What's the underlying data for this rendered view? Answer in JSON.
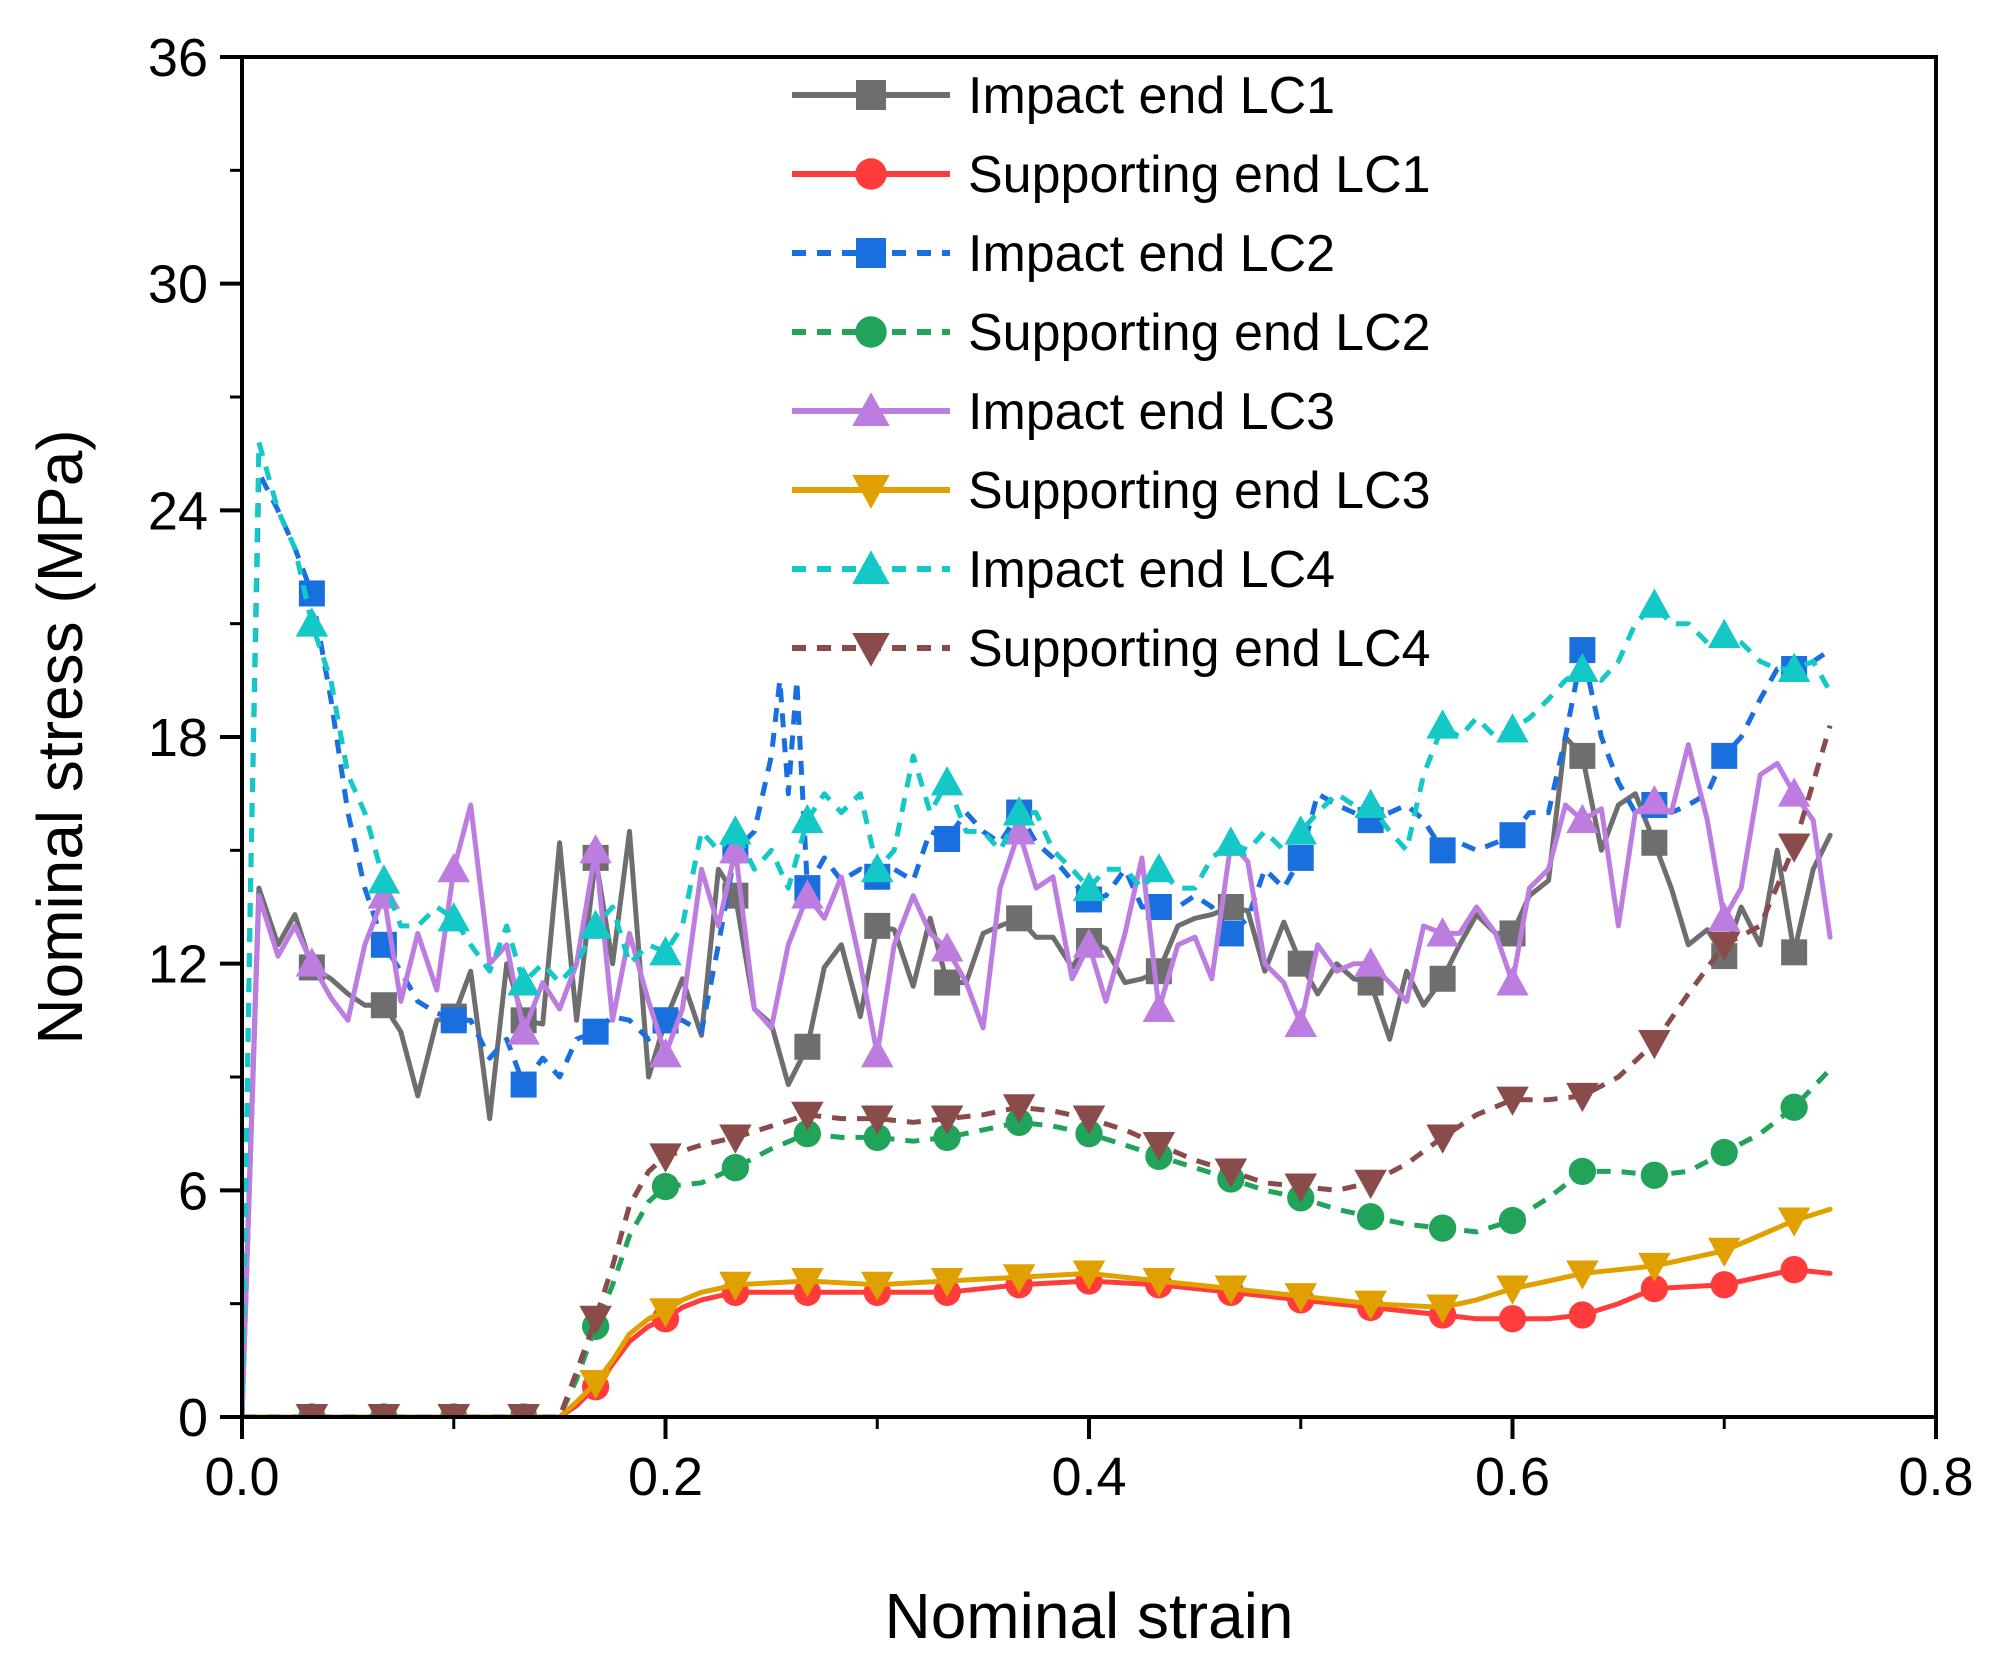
{
  "chart_data": {
    "type": "line",
    "title": "",
    "xlabel": "Nominal strain",
    "ylabel": "Nominal stress (MPa)",
    "xlim": [
      0.0,
      0.8
    ],
    "ylim": [
      0,
      36
    ],
    "xticks": [
      0.0,
      0.2,
      0.4,
      0.6,
      0.8
    ],
    "xtick_labels": [
      "0.0",
      "0.2",
      "0.4",
      "0.6",
      "0.8"
    ],
    "yticks": [
      0,
      6,
      12,
      18,
      24,
      30,
      36
    ],
    "ytick_labels": [
      "0",
      "6",
      "12",
      "18",
      "24",
      "30",
      "36"
    ],
    "grid": false,
    "legend_position": "top-right",
    "series": [
      {
        "name": "Impact end LC1",
        "color": "#6e6e6e",
        "dash": "solid",
        "marker": "square",
        "x": [
          0,
          0.008,
          0.017,
          0.025,
          0.033,
          0.042,
          0.05,
          0.058,
          0.067,
          0.075,
          0.083,
          0.092,
          0.1,
          0.108,
          0.117,
          0.125,
          0.133,
          0.142,
          0.15,
          0.158,
          0.167,
          0.175,
          0.183,
          0.192,
          0.2,
          0.208,
          0.217,
          0.225,
          0.233,
          0.242,
          0.25,
          0.258,
          0.267,
          0.275,
          0.283,
          0.292,
          0.3,
          0.308,
          0.317,
          0.325,
          0.333,
          0.342,
          0.35,
          0.358,
          0.367,
          0.375,
          0.383,
          0.392,
          0.4,
          0.408,
          0.417,
          0.425,
          0.433,
          0.442,
          0.45,
          0.458,
          0.467,
          0.475,
          0.483,
          0.492,
          0.5,
          0.508,
          0.517,
          0.525,
          0.533,
          0.542,
          0.55,
          0.558,
          0.567,
          0.575,
          0.583,
          0.592,
          0.6,
          0.608,
          0.617,
          0.625,
          0.633,
          0.642,
          0.65,
          0.658,
          0.667,
          0.675,
          0.683,
          0.692,
          0.7,
          0.708,
          0.717,
          0.725,
          0.733,
          0.742,
          0.75
        ],
        "y": [
          0,
          14.0,
          12.5,
          13.3,
          11.9,
          11.6,
          11.2,
          10.9,
          10.9,
          10.2,
          8.5,
          10.5,
          10.6,
          11.8,
          7.9,
          12.0,
          10.5,
          10.4,
          15.2,
          10.5,
          14.8,
          12.0,
          15.5,
          9.0,
          10.5,
          11.6,
          10.1,
          14.5,
          13.8,
          10.8,
          10.4,
          8.8,
          9.8,
          11.9,
          12.5,
          10.6,
          13.0,
          12.9,
          11.4,
          13.2,
          11.5,
          11.5,
          12.8,
          13.0,
          13.2,
          12.7,
          12.7,
          11.9,
          12.6,
          12.4,
          11.5,
          11.6,
          11.8,
          13.0,
          13.2,
          13.3,
          13.5,
          13.4,
          11.8,
          13.1,
          12.0,
          11.2,
          12.0,
          11.6,
          11.5,
          10.0,
          11.8,
          10.9,
          11.6,
          12.5,
          13.3,
          12.8,
          12.8,
          13.8,
          14.2,
          18.0,
          17.5,
          15.0,
          16.2,
          16.5,
          15.2,
          14.0,
          12.5,
          12.9,
          12.2,
          13.5,
          12.5,
          15.0,
          12.3,
          14.5,
          15.4
        ]
      },
      {
        "name": "Supporting end LC1",
        "color": "#ff3b3b",
        "dash": "solid",
        "marker": "circle",
        "x": [
          0,
          0.033,
          0.067,
          0.1,
          0.133,
          0.15,
          0.158,
          0.167,
          0.175,
          0.183,
          0.192,
          0.2,
          0.208,
          0.217,
          0.233,
          0.267,
          0.3,
          0.333,
          0.367,
          0.4,
          0.433,
          0.467,
          0.5,
          0.533,
          0.567,
          0.583,
          0.6,
          0.617,
          0.633,
          0.65,
          0.667,
          0.7,
          0.733,
          0.75
        ],
        "y": [
          0,
          0,
          0,
          0,
          0,
          0,
          0.3,
          0.8,
          1.4,
          2.0,
          2.4,
          2.6,
          2.9,
          3.1,
          3.3,
          3.3,
          3.3,
          3.3,
          3.5,
          3.6,
          3.5,
          3.3,
          3.1,
          2.9,
          2.7,
          2.6,
          2.6,
          2.6,
          2.7,
          3.0,
          3.4,
          3.5,
          3.9,
          3.8
        ]
      },
      {
        "name": "Impact end LC2",
        "color": "#1a6fdf",
        "dash": "dash",
        "marker": "square",
        "x": [
          0,
          0.004,
          0.008,
          0.017,
          0.025,
          0.033,
          0.042,
          0.05,
          0.058,
          0.067,
          0.075,
          0.083,
          0.092,
          0.1,
          0.108,
          0.117,
          0.125,
          0.133,
          0.142,
          0.15,
          0.158,
          0.167,
          0.175,
          0.183,
          0.192,
          0.2,
          0.208,
          0.217,
          0.225,
          0.233,
          0.242,
          0.25,
          0.254,
          0.258,
          0.262,
          0.267,
          0.275,
          0.283,
          0.292,
          0.3,
          0.308,
          0.317,
          0.325,
          0.333,
          0.342,
          0.35,
          0.358,
          0.367,
          0.375,
          0.383,
          0.392,
          0.4,
          0.408,
          0.417,
          0.425,
          0.433,
          0.442,
          0.45,
          0.458,
          0.467,
          0.475,
          0.483,
          0.492,
          0.5,
          0.508,
          0.517,
          0.525,
          0.533,
          0.542,
          0.55,
          0.558,
          0.567,
          0.575,
          0.583,
          0.592,
          0.6,
          0.608,
          0.617,
          0.625,
          0.633,
          0.642,
          0.65,
          0.658,
          0.667,
          0.675,
          0.683,
          0.692,
          0.7,
          0.708,
          0.717,
          0.725,
          0.733,
          0.742,
          0.75
        ],
        "y": [
          0,
          14.0,
          25.0,
          24.0,
          23.0,
          21.8,
          19.0,
          16.0,
          14.0,
          12.5,
          11.8,
          11.0,
          10.7,
          10.5,
          10.5,
          9.5,
          10.0,
          8.8,
          9.5,
          9.0,
          10.0,
          10.2,
          10.6,
          10.5,
          10.0,
          10.5,
          10.5,
          10.2,
          12.5,
          15.0,
          15.5,
          17.5,
          19.5,
          16.5,
          19.5,
          14.0,
          14.8,
          14.2,
          14.5,
          14.3,
          14.5,
          14.2,
          15.5,
          15.3,
          16.0,
          15.5,
          15.2,
          16.0,
          15.2,
          14.8,
          14.2,
          13.7,
          13.8,
          14.5,
          13.5,
          13.5,
          13.5,
          13.8,
          13.5,
          12.8,
          13.2,
          14.5,
          14.0,
          14.8,
          16.5,
          16.2,
          16.0,
          15.8,
          16.0,
          16.2,
          15.8,
          15.0,
          15.2,
          15.0,
          15.2,
          15.4,
          16.0,
          16.0,
          18.0,
          20.3,
          18.0,
          16.8,
          16.0,
          16.2,
          16.0,
          16.2,
          16.5,
          17.5,
          18.0,
          19.0,
          19.8,
          19.8,
          20.0,
          20.3
        ]
      },
      {
        "name": "Supporting end LC2",
        "color": "#21a35a",
        "dash": "dash",
        "marker": "circle",
        "x": [
          0,
          0.033,
          0.067,
          0.1,
          0.133,
          0.15,
          0.158,
          0.167,
          0.175,
          0.183,
          0.192,
          0.2,
          0.217,
          0.233,
          0.25,
          0.267,
          0.283,
          0.3,
          0.317,
          0.333,
          0.35,
          0.367,
          0.383,
          0.4,
          0.417,
          0.433,
          0.45,
          0.467,
          0.483,
          0.5,
          0.517,
          0.533,
          0.55,
          0.567,
          0.583,
          0.6,
          0.617,
          0.633,
          0.65,
          0.667,
          0.683,
          0.7,
          0.717,
          0.733,
          0.75
        ],
        "y": [
          0,
          0,
          0,
          0,
          0,
          0,
          1.0,
          2.4,
          3.5,
          4.8,
          5.7,
          6.1,
          6.2,
          6.6,
          7.1,
          7.5,
          7.4,
          7.4,
          7.3,
          7.4,
          7.6,
          7.8,
          7.7,
          7.5,
          7.2,
          6.9,
          6.6,
          6.3,
          6.0,
          5.8,
          5.5,
          5.3,
          5.1,
          5.0,
          4.9,
          5.2,
          5.8,
          6.5,
          6.5,
          6.4,
          6.5,
          7.0,
          7.5,
          8.2,
          9.2
        ]
      },
      {
        "name": "Impact end LC3",
        "color": "#bd7de0",
        "dash": "solid",
        "marker": "triangle-up",
        "x": [
          0,
          0.008,
          0.017,
          0.025,
          0.033,
          0.042,
          0.05,
          0.058,
          0.067,
          0.075,
          0.083,
          0.092,
          0.1,
          0.108,
          0.117,
          0.125,
          0.133,
          0.142,
          0.15,
          0.158,
          0.167,
          0.175,
          0.183,
          0.192,
          0.2,
          0.208,
          0.217,
          0.225,
          0.233,
          0.242,
          0.25,
          0.258,
          0.267,
          0.275,
          0.283,
          0.292,
          0.3,
          0.308,
          0.317,
          0.325,
          0.333,
          0.342,
          0.35,
          0.358,
          0.367,
          0.375,
          0.383,
          0.392,
          0.4,
          0.408,
          0.417,
          0.425,
          0.433,
          0.442,
          0.45,
          0.458,
          0.467,
          0.475,
          0.483,
          0.492,
          0.5,
          0.508,
          0.517,
          0.525,
          0.533,
          0.542,
          0.55,
          0.558,
          0.567,
          0.575,
          0.583,
          0.592,
          0.6,
          0.608,
          0.617,
          0.625,
          0.633,
          0.642,
          0.65,
          0.658,
          0.667,
          0.675,
          0.683,
          0.692,
          0.7,
          0.708,
          0.717,
          0.725,
          0.733,
          0.742,
          0.75
        ],
        "y": [
          0,
          13.8,
          12.2,
          13.0,
          12.0,
          11.1,
          10.5,
          12.5,
          13.8,
          11.0,
          12.8,
          11.3,
          14.5,
          16.2,
          12.0,
          12.5,
          10.2,
          11.5,
          10.8,
          12.0,
          15.0,
          10.5,
          12.8,
          11.0,
          9.6,
          10.8,
          14.5,
          13.0,
          15.0,
          10.8,
          10.3,
          12.5,
          13.8,
          13.2,
          14.3,
          12.0,
          9.6,
          12.5,
          13.8,
          12.8,
          12.4,
          11.5,
          10.3,
          14.0,
          15.5,
          14.0,
          14.3,
          11.6,
          12.5,
          11.0,
          12.8,
          14.8,
          10.8,
          12.5,
          12.7,
          11.6,
          15.2,
          14.7,
          12.0,
          11.5,
          10.4,
          12.5,
          11.8,
          12.0,
          12.0,
          11.5,
          11.0,
          13.0,
          12.8,
          12.8,
          13.5,
          12.8,
          11.5,
          14.0,
          14.5,
          16.2,
          15.8,
          16.1,
          13.0,
          16.0,
          16.3,
          16.0,
          17.8,
          15.8,
          13.2,
          14.0,
          17.0,
          17.3,
          16.5,
          15.8,
          12.7
        ]
      },
      {
        "name": "Supporting end LC3",
        "color": "#e0a000",
        "dash": "solid",
        "marker": "triangle-down",
        "x": [
          0,
          0.033,
          0.067,
          0.1,
          0.133,
          0.15,
          0.158,
          0.167,
          0.175,
          0.183,
          0.192,
          0.2,
          0.208,
          0.217,
          0.233,
          0.267,
          0.3,
          0.333,
          0.367,
          0.4,
          0.433,
          0.467,
          0.5,
          0.533,
          0.567,
          0.583,
          0.6,
          0.617,
          0.633,
          0.65,
          0.667,
          0.7,
          0.733,
          0.75
        ],
        "y": [
          0,
          0,
          0,
          0,
          0,
          0,
          0.4,
          0.9,
          1.5,
          2.2,
          2.6,
          2.8,
          3.1,
          3.3,
          3.5,
          3.6,
          3.5,
          3.6,
          3.7,
          3.8,
          3.6,
          3.4,
          3.2,
          3.0,
          2.9,
          3.1,
          3.4,
          3.6,
          3.8,
          3.9,
          4.0,
          4.4,
          5.2,
          5.5
        ]
      },
      {
        "name": "Impact end LC4",
        "color": "#14c8c8",
        "dash": "dash",
        "marker": "triangle-up",
        "x": [
          0,
          0.004,
          0.008,
          0.017,
          0.025,
          0.033,
          0.042,
          0.05,
          0.058,
          0.067,
          0.075,
          0.083,
          0.092,
          0.1,
          0.108,
          0.117,
          0.125,
          0.133,
          0.142,
          0.15,
          0.158,
          0.167,
          0.175,
          0.183,
          0.192,
          0.2,
          0.208,
          0.217,
          0.225,
          0.233,
          0.242,
          0.25,
          0.258,
          0.267,
          0.275,
          0.283,
          0.292,
          0.3,
          0.308,
          0.317,
          0.325,
          0.333,
          0.342,
          0.35,
          0.358,
          0.367,
          0.375,
          0.383,
          0.392,
          0.4,
          0.408,
          0.417,
          0.425,
          0.433,
          0.442,
          0.45,
          0.458,
          0.467,
          0.475,
          0.483,
          0.492,
          0.5,
          0.508,
          0.517,
          0.525,
          0.533,
          0.542,
          0.55,
          0.558,
          0.567,
          0.575,
          0.583,
          0.592,
          0.6,
          0.608,
          0.617,
          0.625,
          0.633,
          0.642,
          0.65,
          0.658,
          0.667,
          0.675,
          0.683,
          0.692,
          0.7,
          0.708,
          0.717,
          0.725,
          0.733,
          0.742,
          0.75
        ],
        "y": [
          0,
          14.0,
          25.8,
          24.0,
          23.0,
          21.0,
          19.5,
          17.0,
          16.0,
          14.2,
          13.0,
          13.0,
          13.5,
          13.2,
          12.5,
          11.8,
          13.0,
          11.5,
          12.0,
          11.5,
          12.0,
          13.0,
          13.5,
          12.0,
          12.5,
          12.3,
          13.0,
          15.5,
          15.0,
          15.5,
          14.5,
          15.0,
          14.0,
          15.8,
          16.5,
          16.0,
          16.5,
          14.5,
          15.0,
          17.5,
          16.0,
          16.8,
          15.5,
          15.5,
          15.0,
          16.0,
          16.0,
          15.0,
          14.5,
          14.0,
          14.5,
          14.5,
          14.0,
          14.5,
          14.0,
          14.0,
          14.8,
          15.2,
          15.0,
          15.5,
          15.0,
          15.5,
          16.0,
          16.5,
          16.2,
          16.2,
          15.5,
          15.0,
          17.0,
          18.3,
          18.0,
          18.5,
          18.0,
          18.2,
          18.5,
          19.0,
          19.5,
          19.8,
          19.5,
          20.0,
          21.0,
          21.5,
          21.0,
          21.0,
          20.5,
          20.7,
          20.5,
          20.0,
          19.8,
          19.8,
          20.0,
          19.2
        ]
      },
      {
        "name": "Supporting end LC4",
        "color": "#8a4b4b",
        "dash": "dash",
        "marker": "triangle-down",
        "x": [
          0,
          0.033,
          0.067,
          0.1,
          0.133,
          0.15,
          0.158,
          0.167,
          0.175,
          0.183,
          0.192,
          0.2,
          0.217,
          0.233,
          0.25,
          0.267,
          0.283,
          0.3,
          0.317,
          0.333,
          0.35,
          0.367,
          0.383,
          0.4,
          0.417,
          0.433,
          0.45,
          0.467,
          0.483,
          0.5,
          0.517,
          0.533,
          0.55,
          0.567,
          0.583,
          0.6,
          0.617,
          0.633,
          0.65,
          0.667,
          0.683,
          0.7,
          0.717,
          0.733,
          0.75
        ],
        "y": [
          0,
          0,
          0,
          0,
          0,
          0,
          1.2,
          2.6,
          4.0,
          5.6,
          6.5,
          6.9,
          7.2,
          7.4,
          7.7,
          8.0,
          7.9,
          7.9,
          7.8,
          7.9,
          8.0,
          8.2,
          8.1,
          7.9,
          7.6,
          7.2,
          6.8,
          6.5,
          6.2,
          6.1,
          6.0,
          6.2,
          6.7,
          7.4,
          8.0,
          8.4,
          8.4,
          8.5,
          9.0,
          9.9,
          11.2,
          12.5,
          13.0,
          15.1,
          18.3
        ]
      }
    ]
  }
}
